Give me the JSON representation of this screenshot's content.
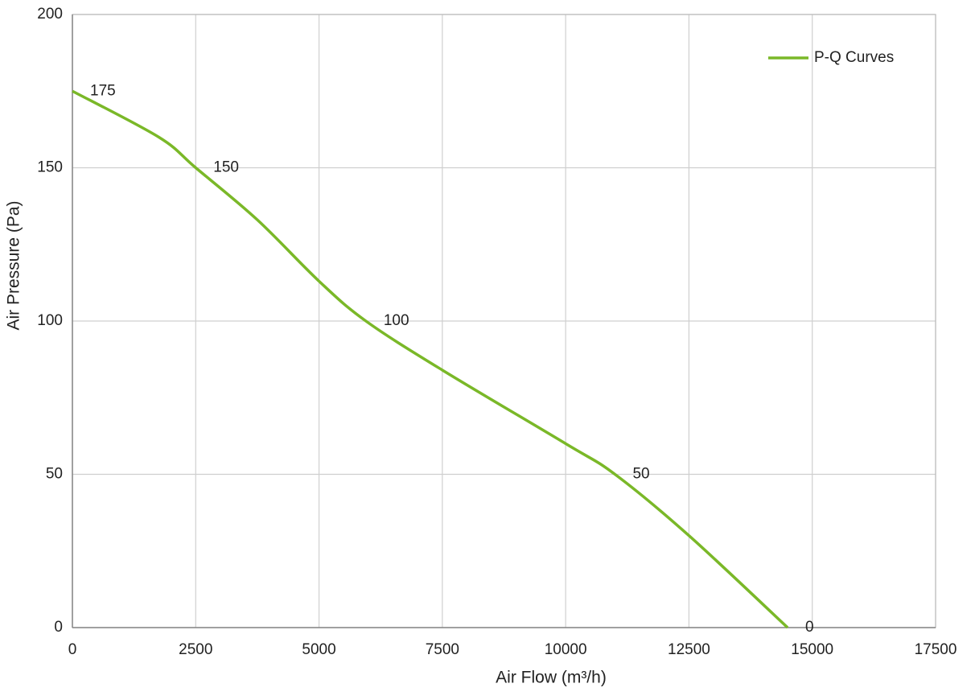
{
  "chart_data": {
    "type": "line",
    "x_label": "Air Flow  (m³/h)",
    "y_label": "Air Pressure  (Pa)",
    "x": [
      0,
      1750,
      2500,
      3750,
      5000,
      5950,
      7500,
      10000,
      11000,
      12500,
      14500
    ],
    "series": [
      {
        "name": "P-Q Curves",
        "color": "#7ab828",
        "values": [
          175,
          160,
          150,
          133,
          113,
          100,
          84,
          60,
          50,
          30,
          0
        ],
        "value_labels": [
          "175",
          null,
          "150",
          null,
          null,
          "100",
          null,
          null,
          "50",
          null,
          "0"
        ]
      }
    ],
    "xlim": [
      0,
      17500
    ],
    "xticks": [
      0,
      2500,
      5000,
      7500,
      10000,
      12500,
      15000,
      17500
    ],
    "ylim": [
      0,
      200
    ],
    "yticks": [
      0,
      50,
      100,
      150,
      200
    ],
    "grid": true,
    "legend": "upper right"
  }
}
